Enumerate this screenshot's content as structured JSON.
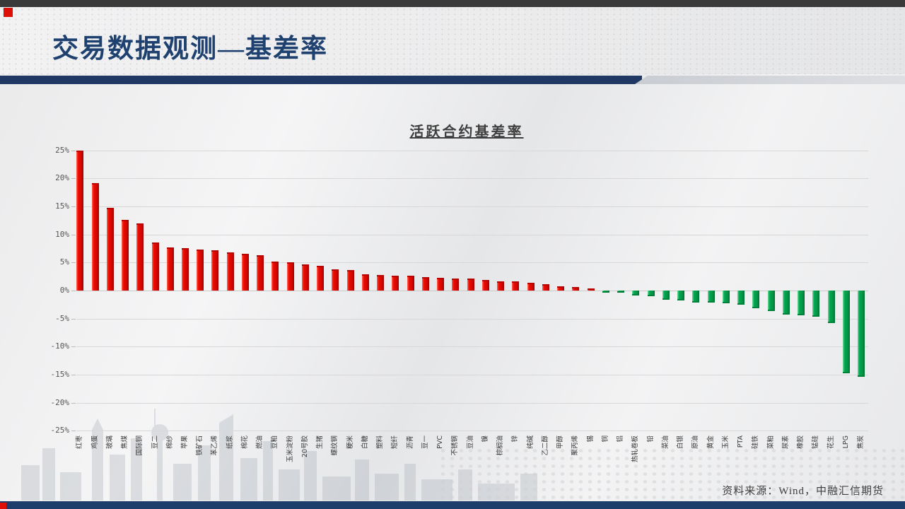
{
  "slide": {
    "header_title": "交易数据观测—基差率",
    "source": "资料来源：Wind，中融汇信期货"
  },
  "chart_data": {
    "type": "bar",
    "title": "活跃合约基差率",
    "categories": [
      "红枣",
      "鸡蛋",
      "玻璃",
      "焦煤",
      "国际铜",
      "豆二",
      "棉纱",
      "苹果",
      "铁矿石",
      "苯乙烯",
      "纸浆",
      "棉花",
      "燃油",
      "豆粕",
      "玉米淀粉",
      "20号胶",
      "生猪",
      "螺纹钢",
      "粳米",
      "白糖",
      "塑料",
      "短纤",
      "沥青",
      "豆一",
      "PVC",
      "不锈钢",
      "豆油",
      "镍",
      "棕榈油",
      "锌",
      "纯碱",
      "乙二醇",
      "甲醇",
      "聚丙烯",
      "锡",
      "铜",
      "铝",
      "热轧卷板",
      "铅",
      "菜油",
      "白银",
      "原油",
      "黄金",
      "玉米",
      "PTA",
      "硅铁",
      "菜粕",
      "尿素",
      "橡胶",
      "锰硅",
      "花生",
      "LPG",
      "焦炭"
    ],
    "values": [
      25.0,
      19.1,
      14.8,
      12.6,
      12.0,
      8.6,
      7.7,
      7.6,
      7.3,
      7.2,
      6.8,
      6.5,
      6.3,
      5.2,
      5.1,
      4.7,
      4.4,
      3.8,
      3.6,
      2.9,
      2.8,
      2.6,
      2.6,
      2.4,
      2.3,
      2.2,
      2.1,
      1.9,
      1.7,
      1.6,
      1.4,
      1.1,
      0.8,
      0.6,
      0.3,
      -0.2,
      -0.4,
      -0.9,
      -1.0,
      -1.6,
      -1.8,
      -2.1,
      -2.2,
      -2.3,
      -2.5,
      -3.2,
      -3.7,
      -4.3,
      -4.4,
      -4.7,
      -5.8,
      -14.7,
      -15.4
    ],
    "value_unit": "%",
    "ylim": [
      -25,
      25
    ],
    "ytick_labels": [
      "25%",
      "20%",
      "15%",
      "10%",
      "5%",
      "0%",
      "-5%",
      "-10%",
      "-15%",
      "-20%",
      "-25%"
    ],
    "grid": true,
    "legend": "none",
    "positive_color": "#e00b01",
    "negative_color": "#00a54f"
  },
  "colors": {
    "title_blue": "#1f4170",
    "bar_blue": "#1f3864",
    "accent_red": "#dd0f07",
    "footer_blue": "#1d3d6b"
  }
}
